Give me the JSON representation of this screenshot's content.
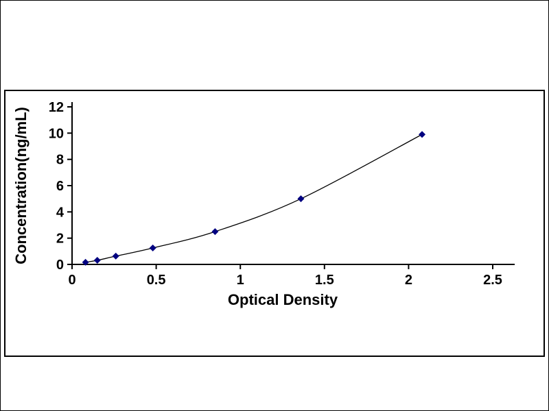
{
  "chart_data": {
    "type": "line",
    "title": "",
    "xlabel": "Optical Density",
    "ylabel": "Concentration(ng/mL)",
    "x": [
      0.08,
      0.15,
      0.26,
      0.48,
      0.85,
      1.36,
      2.08
    ],
    "y": [
      0.16,
      0.31,
      0.63,
      1.25,
      2.5,
      5.0,
      9.9
    ],
    "xlim": [
      0,
      2.5
    ],
    "ylim": [
      0,
      12
    ],
    "xticks": [
      0,
      0.5,
      1,
      1.5,
      2,
      2.5
    ],
    "xtick_labels": [
      "0",
      "0.5",
      "1",
      "1.5",
      "2",
      "2.5"
    ],
    "yticks": [
      0,
      2,
      4,
      6,
      8,
      10,
      12
    ],
    "ytick_labels": [
      "0",
      "2",
      "4",
      "6",
      "8",
      "10",
      "12"
    ],
    "grid": false,
    "legend": null,
    "marker": "diamond",
    "marker_color": "#000080",
    "line_color": "#000000",
    "axis_color": "#000000"
  }
}
